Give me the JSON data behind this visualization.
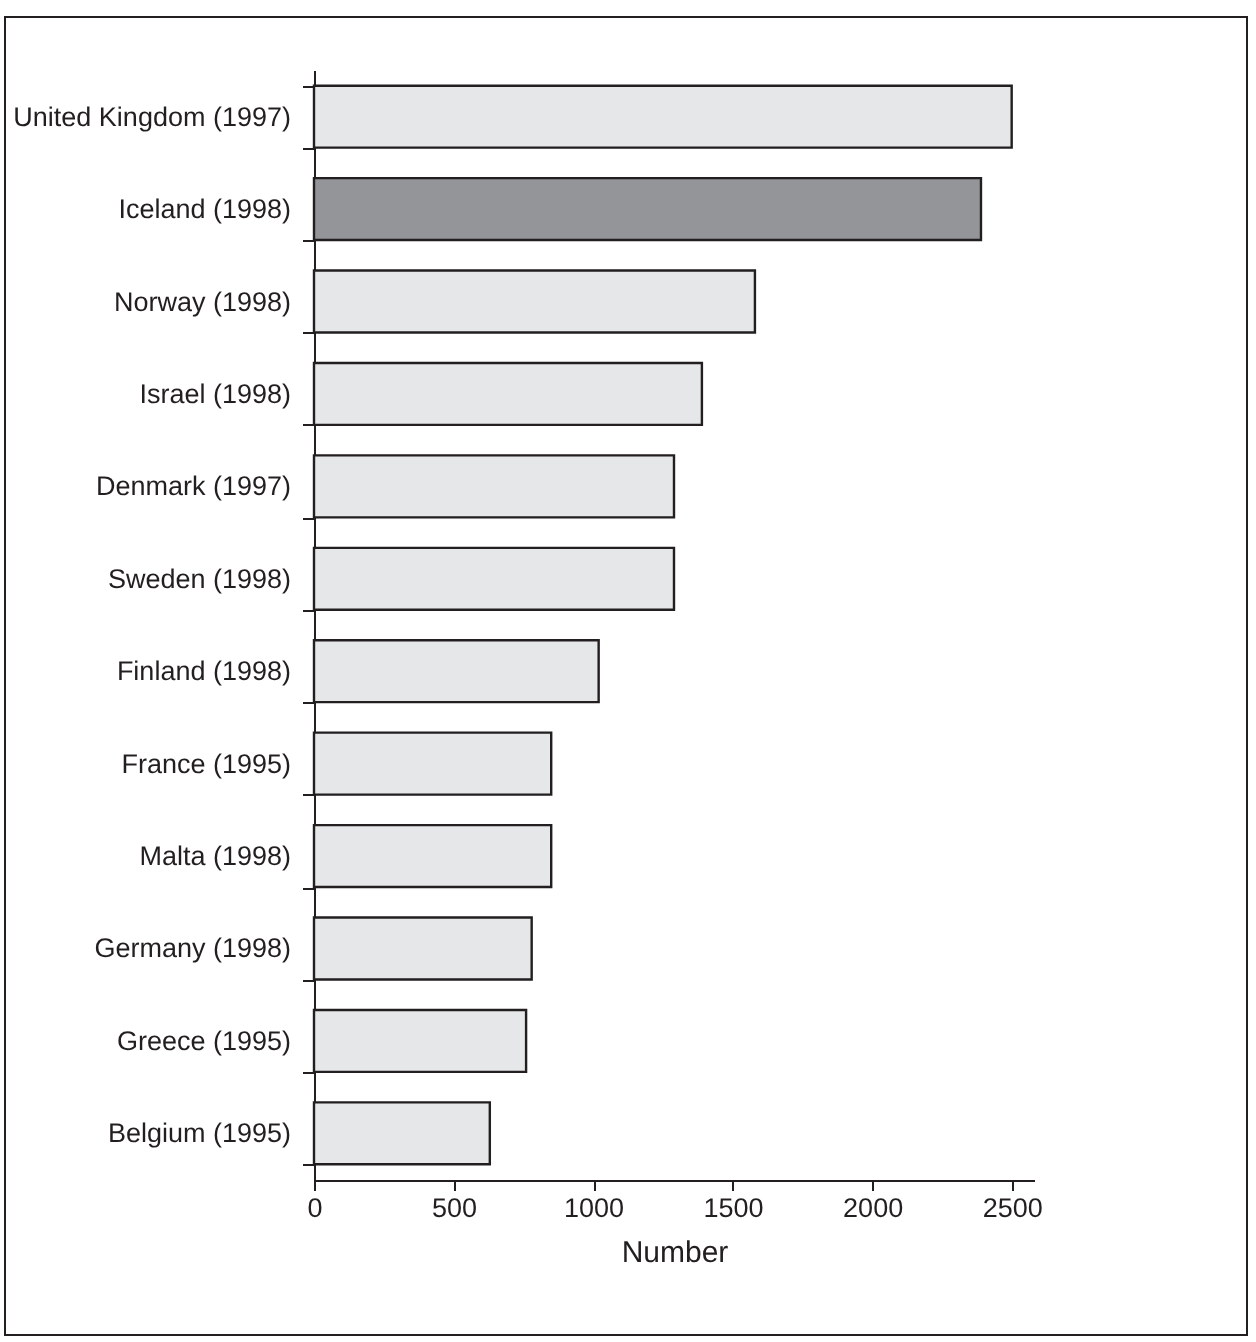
{
  "chart_data": {
    "type": "bar",
    "orientation": "horizontal",
    "xlabel": "Number",
    "categories": [
      "United Kingdom (1997)",
      "Iceland (1998)",
      "Norway (1998)",
      "Israel (1998)",
      "Denmark (1997)",
      "Sweden (1998)",
      "Finland (1998)",
      "France (1995)",
      "Malta (1998)",
      "Germany (1998)",
      "Greece (1995)",
      "Belgium (1995)"
    ],
    "values": [
      2500,
      2390,
      1580,
      1390,
      1290,
      1290,
      1020,
      850,
      850,
      780,
      760,
      630
    ],
    "colors": [
      "#e6e7e8",
      "#939598",
      "#e6e7e8",
      "#e6e7e8",
      "#e6e7e8",
      "#e6e7e8",
      "#e6e7e8",
      "#e6e7e8",
      "#e6e7e8",
      "#e6e7e8",
      "#e6e7e8",
      "#e6e7e8"
    ],
    "xlim": [
      0,
      2580
    ],
    "xticks": [
      0,
      500,
      1000,
      1500,
      2000,
      2500
    ],
    "grid": false
  }
}
